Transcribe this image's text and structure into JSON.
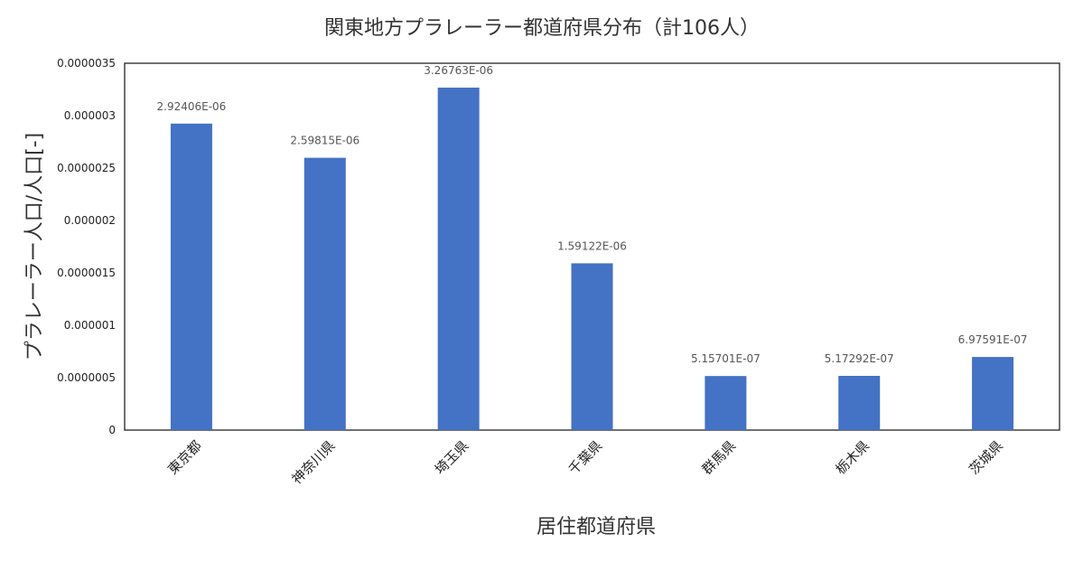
{
  "chart_data": {
    "type": "bar",
    "title": "関東地方プラレーラー都道府県分布（計106人）",
    "xlabel": "居住都道府県",
    "ylabel": "プラレーラー人口/人口[-]",
    "categories": [
      "東京都",
      "神奈川県",
      "埼玉県",
      "千葉県",
      "群馬県",
      "栃木県",
      "茨城県"
    ],
    "values": [
      2.92406e-06,
      2.59815e-06,
      3.26763e-06,
      1.59122e-06,
      5.15701e-07,
      5.17292e-07,
      6.97591e-07
    ],
    "data_labels": [
      "2.92406E-06",
      "2.59815E-06",
      "3.26763E-06",
      "1.59122E-06",
      "5.15701E-07",
      "5.17292E-07",
      "6.97591E-07"
    ],
    "ylim": [
      0,
      3.5e-06
    ],
    "yticks": [
      0,
      5e-07,
      1e-06,
      1.5e-06,
      2e-06,
      2.5e-06,
      3e-06,
      3.5e-06
    ],
    "ytick_labels": [
      "0",
      "0.0000005",
      "0.000001",
      "0.0000015",
      "0.000002",
      "0.0000025",
      "0.000003",
      "0.0000035"
    ],
    "grid": false,
    "legend": "none",
    "bar_color": "#4472c4"
  }
}
